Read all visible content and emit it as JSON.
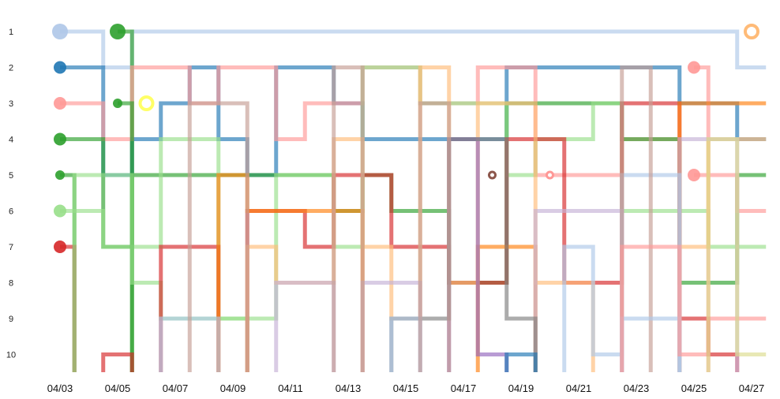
{
  "chart_data": {
    "type": "line",
    "subtype": "bump-step",
    "title": "",
    "xlabel": "",
    "ylabel": "",
    "y_reversed": true,
    "ylim": [
      1,
      10
    ],
    "y_ticks": [
      "1",
      "2",
      "3",
      "4",
      "5",
      "6",
      "7",
      "8",
      "9",
      "10"
    ],
    "x": [
      "04/03",
      "04/04",
      "04/05",
      "04/06",
      "04/07",
      "04/08",
      "04/09",
      "04/10",
      "04/11",
      "04/12",
      "04/13",
      "04/14",
      "04/15",
      "04/16",
      "04/17",
      "04/18",
      "04/19",
      "04/20",
      "04/21",
      "04/22",
      "04/23",
      "04/24",
      "04/25",
      "04/26",
      "04/27"
    ],
    "x_tick_labels": [
      "04/03",
      "04/05",
      "04/07",
      "04/09",
      "04/11",
      "04/13",
      "04/15",
      "04/17",
      "04/19",
      "04/21",
      "04/23",
      "04/25",
      "04/27"
    ],
    "grid": false,
    "legend": "none",
    "series": [
      {
        "color": "#aec7e8",
        "marker": "dot-large",
        "ranks": [
          1,
          1,
          2,
          1,
          1,
          1,
          1,
          1,
          1,
          1,
          1,
          1,
          1,
          1,
          1,
          1,
          1,
          1,
          1,
          1,
          1,
          1,
          1,
          1,
          2
        ]
      },
      {
        "color": "#2ca02c",
        "marker": "dot-large",
        "ranks": [
          null,
          null,
          1,
          null,
          null,
          null,
          null,
          null,
          null,
          null,
          null,
          null,
          null,
          null,
          null,
          null,
          null,
          null,
          null,
          null,
          null,
          null,
          null,
          null,
          null
        ]
      },
      {
        "color": "#1f77b4",
        "marker": "dot",
        "ranks": [
          2,
          2,
          5,
          4,
          3,
          2,
          4,
          5,
          2,
          2,
          3,
          4,
          4,
          4,
          4,
          4,
          2,
          2,
          2,
          2,
          2,
          2,
          3,
          3,
          4
        ]
      },
      {
        "color": "#ff9896",
        "marker": "dot",
        "ranks": [
          3,
          3,
          4,
          2,
          2,
          3,
          2,
          2,
          4,
          3,
          3,
          2,
          2,
          3,
          3,
          2,
          2,
          5,
          5,
          5,
          4,
          4,
          null,
          null,
          null
        ]
      },
      {
        "color": "#2ca02c",
        "marker": "dot",
        "ranks": [
          4,
          4,
          7,
          5,
          5,
          5,
          5,
          5,
          5,
          5,
          6,
          5,
          6,
          6,
          8,
          8,
          3,
          3,
          3,
          3,
          4,
          4,
          8,
          8,
          5
        ]
      },
      {
        "color": "#2ca02c",
        "marker": "dot-small",
        "ranks": [
          5,
          null,
          null,
          null,
          null,
          null,
          null,
          null,
          null,
          null,
          null,
          null,
          null,
          null,
          null,
          null,
          null,
          null,
          null,
          null,
          null,
          null,
          null,
          null,
          null
        ]
      },
      {
        "color": "#98df8a",
        "marker": "dot",
        "ranks": [
          6,
          6,
          7,
          7,
          4,
          4,
          9,
          9,
          5,
          5,
          7,
          2,
          2,
          3,
          3,
          3,
          5,
          4,
          4,
          3,
          6,
          6,
          6,
          7,
          7
        ]
      },
      {
        "color": "#d62728",
        "marker": "dot",
        "ranks": [
          7,
          null,
          null,
          null,
          null,
          null,
          null,
          null,
          null,
          null,
          null,
          null,
          null,
          null,
          null,
          null,
          null,
          null,
          null,
          null,
          null,
          null,
          null,
          null,
          null
        ]
      },
      {
        "color": "#2ca02c",
        "marker": "dot-small",
        "ranks": [
          null,
          null,
          3,
          null,
          null,
          null,
          null,
          null,
          null,
          null,
          null,
          null,
          null,
          null,
          null,
          null,
          null,
          null,
          null,
          null,
          null,
          null,
          null,
          null,
          null
        ]
      },
      {
        "color": "#ffff66",
        "marker": "ring",
        "ranks": [
          null,
          null,
          null,
          3,
          null,
          null,
          null,
          null,
          null,
          null,
          null,
          null,
          null,
          null,
          null,
          null,
          null,
          null,
          null,
          null,
          null,
          null,
          null,
          null,
          null
        ]
      },
      {
        "color": "#8c564b",
        "marker": "ring-small",
        "ranks": [
          null,
          null,
          null,
          null,
          null,
          null,
          null,
          null,
          null,
          null,
          null,
          null,
          null,
          null,
          null,
          5,
          null,
          null,
          null,
          null,
          null,
          null,
          null,
          null,
          null
        ]
      },
      {
        "color": "#ff9896",
        "marker": "ring-small",
        "ranks": [
          null,
          null,
          null,
          null,
          null,
          null,
          null,
          null,
          null,
          null,
          null,
          null,
          null,
          null,
          null,
          null,
          null,
          5,
          null,
          null,
          null,
          null,
          null,
          null,
          null
        ]
      },
      {
        "color": "#ff9896",
        "marker": "dot",
        "ranks": [
          null,
          null,
          null,
          null,
          null,
          null,
          null,
          null,
          null,
          null,
          null,
          null,
          null,
          null,
          null,
          null,
          null,
          null,
          null,
          null,
          null,
          null,
          2,
          null,
          null
        ]
      },
      {
        "color": "#ff9896",
        "marker": "dot",
        "ranks": [
          null,
          null,
          null,
          null,
          null,
          null,
          null,
          null,
          null,
          null,
          null,
          null,
          null,
          null,
          null,
          null,
          null,
          null,
          null,
          null,
          null,
          null,
          5,
          5,
          6
        ]
      },
      {
        "color": "#ffbb78",
        "marker": "ring",
        "ranks": [
          null,
          null,
          null,
          null,
          null,
          null,
          null,
          null,
          null,
          null,
          null,
          null,
          null,
          null,
          null,
          null,
          null,
          null,
          null,
          null,
          null,
          null,
          null,
          null,
          1
        ]
      },
      {
        "color": "#98df8a",
        "marker": "none",
        "ranks": [
          null,
          5,
          5,
          8,
          9,
          9,
          9,
          null,
          null,
          null,
          null,
          null,
          null,
          null,
          null,
          null,
          null,
          null,
          null,
          null,
          null,
          null,
          null,
          null,
          null
        ]
      },
      {
        "color": "#d62728",
        "marker": "none",
        "ranks": [
          null,
          null,
          10,
          null,
          7,
          7,
          null,
          6,
          6,
          7,
          5,
          5,
          7,
          7,
          8,
          8,
          4,
          4,
          8,
          8,
          3,
          3,
          9,
          10,
          null
        ]
      },
      {
        "color": "#ff7f0e",
        "marker": "none",
        "ranks": [
          null,
          null,
          null,
          null,
          null,
          null,
          5,
          6,
          6,
          6,
          6,
          null,
          null,
          null,
          null,
          7,
          7,
          null,
          null,
          null,
          null,
          null,
          3,
          3,
          3
        ]
      },
      {
        "color": "#ffbb78",
        "marker": "none",
        "ranks": [
          null,
          null,
          null,
          null,
          null,
          null,
          null,
          7,
          8,
          8,
          4,
          7,
          9,
          2,
          8,
          3,
          3,
          8,
          8,
          null,
          null,
          null,
          7,
          4,
          4
        ]
      },
      {
        "color": "#c5b0d5",
        "marker": "none",
        "ranks": [
          null,
          null,
          null,
          null,
          null,
          null,
          null,
          null,
          8,
          8,
          null,
          8,
          8,
          null,
          null,
          null,
          null,
          6,
          6,
          6,
          null,
          null,
          4,
          4,
          null
        ]
      },
      {
        "color": "#9467bd",
        "marker": "none",
        "ranks": [
          null,
          null,
          null,
          null,
          null,
          null,
          null,
          null,
          null,
          null,
          null,
          null,
          null,
          null,
          4,
          10,
          null,
          null,
          null,
          null,
          null,
          null,
          null,
          null,
          null
        ]
      },
      {
        "color": "#7f7f7f",
        "marker": "none",
        "ranks": [
          null,
          null,
          null,
          null,
          null,
          null,
          null,
          null,
          null,
          null,
          null,
          null,
          9,
          9,
          4,
          4,
          9,
          null,
          null,
          null,
          null,
          null,
          null,
          null,
          null
        ]
      },
      {
        "color": "#aec7e8",
        "marker": "none",
        "ranks": [
          null,
          null,
          null,
          null,
          9,
          9,
          null,
          null,
          null,
          null,
          null,
          null,
          9,
          null,
          null,
          null,
          null,
          null,
          7,
          10,
          5,
          5,
          null,
          null,
          null
        ]
      },
      {
        "color": "#c49c94",
        "marker": "none",
        "ranks": [
          null,
          null,
          null,
          null,
          null,
          3,
          3,
          null,
          null,
          null,
          2,
          null,
          null,
          3,
          null,
          null,
          null,
          null,
          null,
          null,
          2,
          null,
          null,
          null,
          null
        ]
      },
      {
        "color": "#1f77b4",
        "marker": "none",
        "ranks": [
          null,
          null,
          null,
          null,
          null,
          null,
          null,
          null,
          null,
          null,
          null,
          null,
          null,
          null,
          null,
          null,
          10,
          null,
          null,
          null,
          null,
          null,
          null,
          null,
          null
        ]
      },
      {
        "color": "#aec7e8",
        "marker": "none",
        "ranks": [
          null,
          null,
          null,
          null,
          null,
          null,
          null,
          null,
          null,
          null,
          null,
          null,
          null,
          null,
          null,
          null,
          null,
          null,
          null,
          null,
          9,
          9,
          null,
          null,
          null
        ]
      },
      {
        "color": "#ff9896",
        "marker": "none",
        "ranks": [
          null,
          null,
          null,
          null,
          null,
          null,
          null,
          null,
          null,
          null,
          null,
          null,
          null,
          null,
          null,
          null,
          null,
          null,
          null,
          null,
          7,
          7,
          10,
          9,
          9
        ]
      },
      {
        "color": "#dbdb8d",
        "marker": "none",
        "ranks": [
          null,
          null,
          null,
          null,
          null,
          null,
          null,
          null,
          null,
          null,
          null,
          null,
          null,
          null,
          null,
          null,
          null,
          null,
          null,
          null,
          null,
          null,
          null,
          4,
          10
        ]
      }
    ]
  }
}
